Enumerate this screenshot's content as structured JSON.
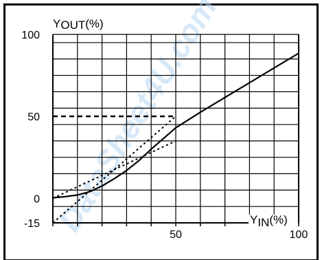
{
  "watermark": "DataSheet4U.com",
  "colors": {
    "background": "#ffffff",
    "lines": "#000000",
    "watermark": "#b7d7f3"
  },
  "chart_data": {
    "type": "line",
    "ylabel": {
      "main": "Y",
      "sub": "OUT",
      "unit": "(%)"
    },
    "xlabel": {
      "main": "Y",
      "sub": "IN",
      "unit": "(%)"
    },
    "xlim": [
      0,
      100
    ],
    "ylim": [
      -15,
      100
    ],
    "grid": true,
    "grid_x": [
      0,
      10,
      20,
      30,
      40,
      50,
      60,
      70,
      80,
      90,
      100
    ],
    "grid_y": [
      -15,
      -5,
      5,
      15,
      25,
      35,
      45,
      55,
      65,
      75,
      85,
      95
    ],
    "x_ticks": [
      {
        "value": 50,
        "label": "50"
      },
      {
        "value": 100,
        "label": "100"
      }
    ],
    "y_ticks": [
      {
        "value": 100,
        "label": "100"
      },
      {
        "value": 50,
        "label": "50"
      },
      {
        "value": 0,
        "label": "0"
      },
      {
        "value": -15,
        "label": "-15"
      }
    ],
    "series": [
      {
        "style": "solid",
        "x": [
          0,
          5,
          10,
          15,
          20,
          25,
          30,
          35,
          40,
          45,
          50,
          60,
          70,
          80,
          90,
          100
        ],
        "y": [
          0.3,
          1.0,
          2.0,
          4.0,
          7.5,
          12.0,
          17.0,
          23.0,
          30.0,
          36.5,
          43.0,
          52.5,
          61.5,
          70.5,
          79.5,
          88.5
        ]
      },
      {
        "style": "dotted",
        "x": [
          0,
          50
        ],
        "y": [
          0,
          35
        ]
      },
      {
        "style": "dotted",
        "x": [
          0,
          50
        ],
        "y": [
          -15,
          50
        ]
      },
      {
        "style": "dashed",
        "x": [
          0,
          50
        ],
        "y": [
          50,
          50
        ]
      }
    ]
  }
}
